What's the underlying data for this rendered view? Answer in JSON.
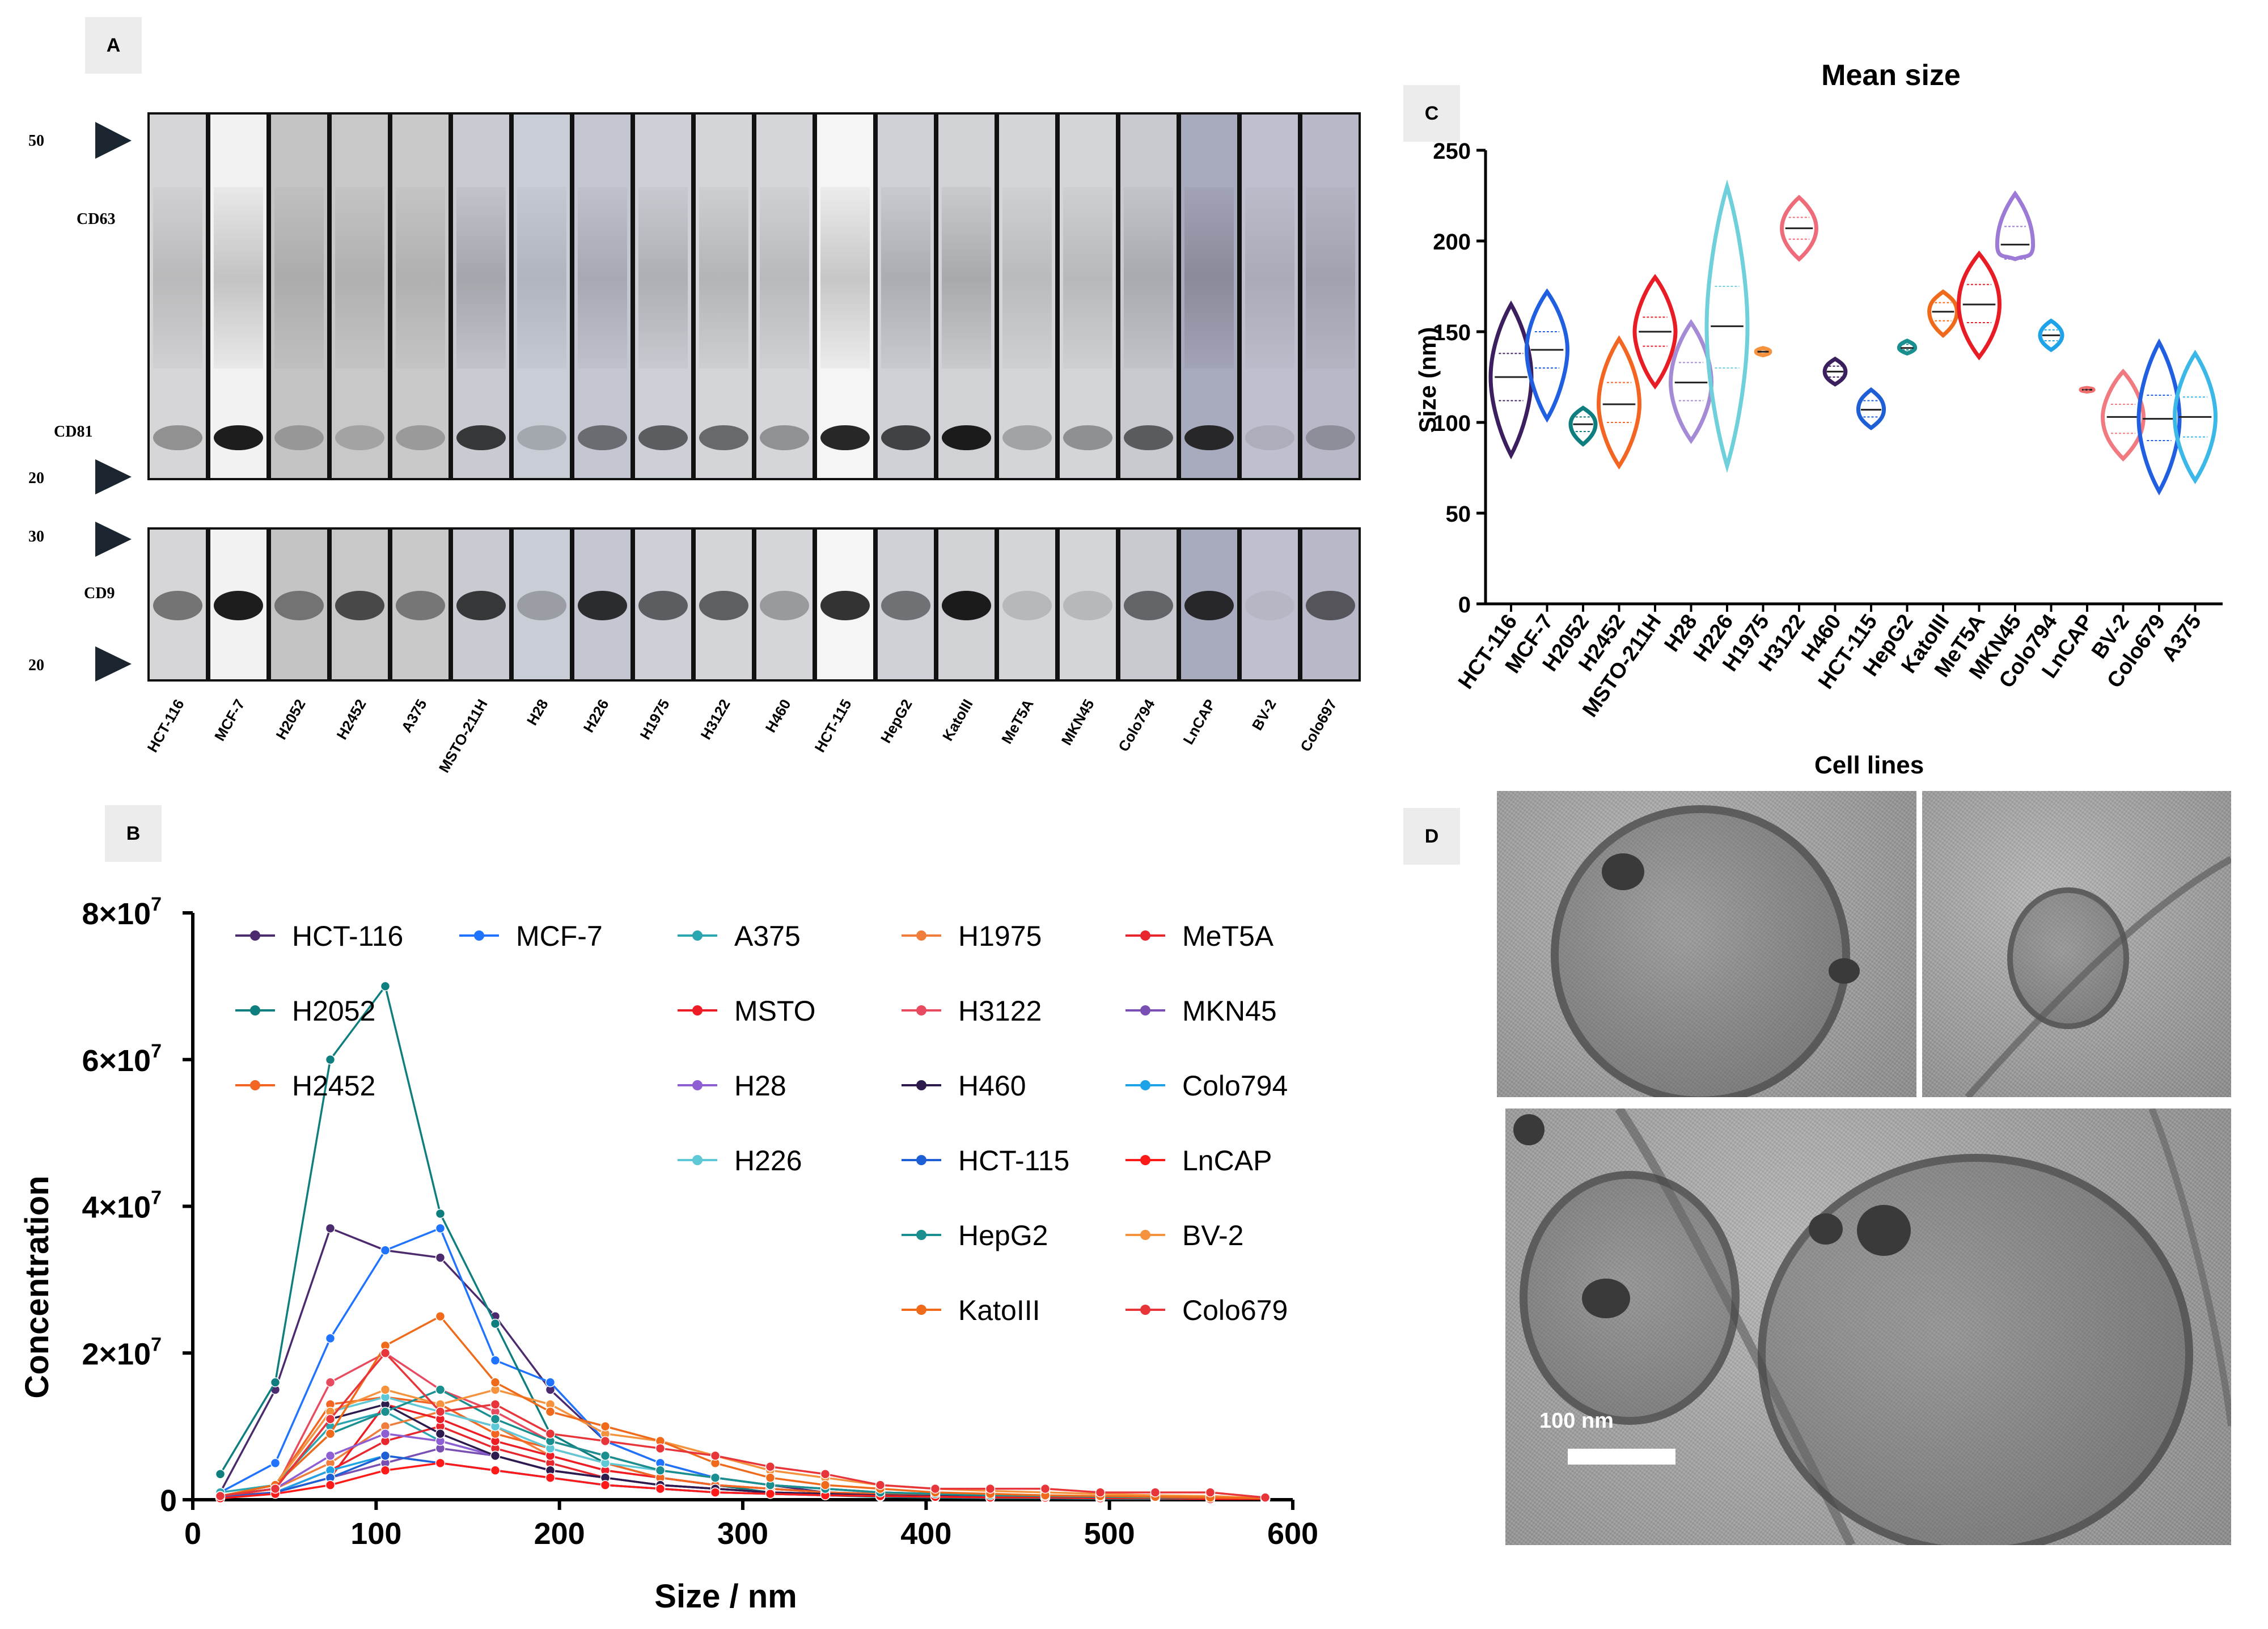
{
  "panels": {
    "a": "A",
    "b": "B",
    "c": "C",
    "d": "D"
  },
  "blot": {
    "markers": {
      "m50": "50",
      "m20_top": "20",
      "m30": "30",
      "m20_bottom": "20"
    },
    "proteins": {
      "cd63": "CD63",
      "cd81": "CD81",
      "cd9": "CD9"
    },
    "lanes": [
      "HCT-116",
      "MCF-7",
      "H2052",
      "H2452",
      "A375",
      "MSTO-211H",
      "H28",
      "H226",
      "H1975",
      "H3122",
      "H460",
      "HCT-115",
      "HepG2",
      "KatoIII",
      "MeT5A",
      "MKN45",
      "Colo794",
      "LnCAP",
      "BV-2",
      "Colo697"
    ]
  },
  "chart_data": [
    {
      "id": "B",
      "type": "line",
      "xlabel": "Size / nm",
      "ylabel": "Concentration",
      "xlim": [
        0,
        600
      ],
      "ylim": [
        0,
        80000000
      ],
      "x_ticks": [
        "0",
        "100",
        "200",
        "300",
        "400",
        "500",
        "600"
      ],
      "y_ticks": [
        {
          "base": "0",
          "exp": ""
        },
        {
          "base": "2×10",
          "exp": "7"
        },
        {
          "base": "4×10",
          "exp": "7"
        },
        {
          "base": "6×10",
          "exp": "7"
        },
        {
          "base": "8×10",
          "exp": "7"
        }
      ],
      "x": [
        15,
        45,
        75,
        105,
        135,
        165,
        195,
        225,
        255,
        285,
        315,
        345,
        375,
        405,
        435,
        465,
        495,
        525,
        555,
        585
      ],
      "series": [
        {
          "name": "HCT-116",
          "color": "#4b2a6e",
          "values": [
            1.0,
            15.0,
            37.0,
            34.0,
            33.0,
            25.0,
            15.0,
            8.0,
            5.0,
            3.0,
            2.0,
            1.0,
            0.6,
            0.4,
            0.3,
            0.3,
            0.2,
            0.2,
            0.2,
            0.1
          ]
        },
        {
          "name": "MCF-7",
          "color": "#1f73ff",
          "values": [
            1.0,
            5.0,
            22.0,
            34.0,
            37.0,
            19.0,
            16.0,
            8.0,
            5.0,
            3.0,
            2.0,
            1.5,
            1.0,
            0.8,
            0.6,
            0.5,
            0.4,
            0.3,
            0.3,
            0.2
          ]
        },
        {
          "name": "A375",
          "color": "#2aa6b0",
          "values": [
            1.0,
            2.0,
            10.0,
            12.0,
            8.0,
            6.0,
            4.0,
            3.0,
            2.0,
            1.5,
            1.0,
            0.8,
            0.6,
            0.5,
            0.4,
            0.3,
            0.3,
            0.2,
            0.2,
            0.1
          ]
        },
        {
          "name": "H1975",
          "color": "#f07d3b",
          "values": [
            0.5,
            1.5,
            5.0,
            10.0,
            12.0,
            10.0,
            6.0,
            4.0,
            3.0,
            2.0,
            1.5,
            1.0,
            0.8,
            0.6,
            0.5,
            0.4,
            0.3,
            0.3,
            0.2,
            0.1
          ]
        },
        {
          "name": "MeT5A",
          "color": "#e8262d",
          "values": [
            0.5,
            1.0,
            4.0,
            8.0,
            10.0,
            7.0,
            5.0,
            3.0,
            2.0,
            1.5,
            1.0,
            0.8,
            0.6,
            0.5,
            0.4,
            0.3,
            0.3,
            0.2,
            0.2,
            0.1
          ]
        },
        {
          "name": "H2052",
          "color": "#0e7e7e",
          "values": [
            3.5,
            16.0,
            60.0,
            70.0,
            39.0,
            24.0,
            9.0,
            5.0,
            3.0,
            2.0,
            1.0,
            0.6,
            0.4,
            0.3,
            0.2,
            0.2,
            0.1,
            0.1,
            0.1,
            0.1
          ]
        },
        {
          "name": "MSTO",
          "color": "#ee1c25",
          "values": [
            0.3,
            1.0,
            3.0,
            13.0,
            11.0,
            8.0,
            6.0,
            4.0,
            3.0,
            2.0,
            1.5,
            1.0,
            0.8,
            0.6,
            0.5,
            0.4,
            0.3,
            0.3,
            0.2,
            0.1
          ]
        },
        {
          "name": "H3122",
          "color": "#e84a5f",
          "values": [
            0.5,
            1.5,
            16.0,
            20.0,
            15.0,
            12.0,
            8.0,
            6.0,
            4.0,
            3.0,
            2.0,
            1.5,
            1.0,
            0.8,
            0.6,
            0.5,
            0.4,
            0.3,
            0.3,
            0.2
          ]
        },
        {
          "name": "MKN45",
          "color": "#7a4fb3",
          "values": [
            0.3,
            1.0,
            3.0,
            5.0,
            7.0,
            6.0,
            4.0,
            3.0,
            2.0,
            1.5,
            1.0,
            0.8,
            0.6,
            0.5,
            0.4,
            0.3,
            0.3,
            0.2,
            0.2,
            0.1
          ]
        },
        {
          "name": "H2452",
          "color": "#f26522",
          "values": [
            0.5,
            2.0,
            13.0,
            14.0,
            13.0,
            9.0,
            7.0,
            5.0,
            3.0,
            2.0,
            1.5,
            1.0,
            0.8,
            0.6,
            0.5,
            0.4,
            0.3,
            0.3,
            0.2,
            0.1
          ]
        },
        {
          "name": "H28",
          "color": "#8d5fd3",
          "values": [
            0.5,
            1.5,
            6.0,
            9.0,
            8.0,
            6.0,
            4.0,
            3.0,
            2.0,
            1.5,
            1.0,
            0.8,
            0.6,
            0.5,
            0.4,
            0.3,
            0.3,
            0.2,
            0.2,
            0.1
          ]
        },
        {
          "name": "H460",
          "color": "#2d1b4e",
          "values": [
            0.5,
            1.5,
            11.0,
            13.0,
            9.0,
            6.0,
            4.0,
            3.0,
            2.0,
            1.5,
            1.0,
            0.8,
            0.6,
            0.5,
            0.4,
            0.3,
            0.3,
            0.2,
            0.2,
            0.1
          ]
        },
        {
          "name": "Colo794",
          "color": "#1fa3e8",
          "values": [
            0.3,
            1.0,
            4.0,
            6.0,
            5.0,
            4.0,
            3.0,
            2.0,
            1.5,
            1.0,
            0.8,
            0.6,
            0.5,
            0.4,
            0.3,
            0.3,
            0.2,
            0.2,
            0.1,
            0.1
          ]
        },
        {
          "name": "H226",
          "color": "#5fc8d6",
          "values": [
            0.5,
            2.0,
            12.0,
            14.0,
            12.0,
            10.0,
            7.0,
            5.0,
            4.0,
            3.0,
            2.0,
            1.5,
            1.0,
            0.8,
            0.6,
            0.5,
            0.4,
            0.3,
            0.3,
            0.2
          ]
        },
        {
          "name": "HCT-115",
          "color": "#1e5fd6",
          "values": [
            0.3,
            1.0,
            3.0,
            6.0,
            5.0,
            4.0,
            3.0,
            2.0,
            1.5,
            1.0,
            0.8,
            0.6,
            0.5,
            0.4,
            0.3,
            0.3,
            0.2,
            0.2,
            0.1,
            0.1
          ]
        },
        {
          "name": "LnCAP",
          "color": "#ff1a1a",
          "values": [
            0.2,
            0.8,
            2.0,
            4.0,
            5.0,
            4.0,
            3.0,
            2.0,
            1.5,
            1.0,
            0.8,
            0.6,
            0.5,
            0.4,
            0.3,
            0.3,
            0.2,
            0.2,
            0.1,
            0.1
          ]
        },
        {
          "name": "HepG2",
          "color": "#1a8f8f",
          "values": [
            0.5,
            2.0,
            9.0,
            12.0,
            15.0,
            11.0,
            8.0,
            6.0,
            4.0,
            3.0,
            2.0,
            1.5,
            1.0,
            0.8,
            0.6,
            0.5,
            0.4,
            0.3,
            0.3,
            0.2
          ]
        },
        {
          "name": "BV-2",
          "color": "#f5923e",
          "values": [
            0.5,
            2.0,
            12.0,
            15.0,
            13.0,
            15.0,
            13.0,
            9.0,
            8.0,
            6.0,
            4.0,
            3.0,
            2.0,
            1.5,
            1.2,
            1.0,
            0.8,
            0.6,
            0.5,
            0.2
          ]
        },
        {
          "name": "KatoIII",
          "color": "#ef6a1a",
          "values": [
            0.5,
            2.0,
            9.0,
            21.0,
            25.0,
            16.0,
            12.0,
            10.0,
            8.0,
            5.0,
            3.0,
            2.0,
            1.5,
            1.0,
            0.8,
            0.6,
            0.5,
            0.4,
            0.3,
            0.2
          ]
        },
        {
          "name": "Colo679",
          "color": "#e8353a",
          "values": [
            0.5,
            1.5,
            11.0,
            20.0,
            12.0,
            13.0,
            9.0,
            8.0,
            7.0,
            6.0,
            4.5,
            3.5,
            2.0,
            1.5,
            1.5,
            1.5,
            1.0,
            1.0,
            1.0,
            0.3
          ]
        }
      ],
      "value_scale": "values ×10^6"
    },
    {
      "id": "C",
      "type": "violin",
      "title": "Mean size",
      "ylabel": "Size (nm)",
      "ylim": [
        0,
        250
      ],
      "y_ticks": [
        "0",
        "50",
        "100",
        "150",
        "200",
        "250"
      ],
      "categories": [
        "HCT-116",
        "MCF-7",
        "H2052",
        "H2452",
        "MSTO-211H",
        "H28",
        "H226",
        "H1975",
        "H3122",
        "H460",
        "HCT-115",
        "HepG2",
        "KatoIII",
        "MeT5A",
        "MKN45",
        "Colo794",
        "LnCAP",
        "BV-2",
        "Colo679",
        "A375"
      ],
      "violins": [
        {
          "name": "HCT-116",
          "color": "#3b1f5e",
          "min": 82,
          "max": 165,
          "median": 125,
          "q1": 112,
          "q3": 138
        },
        {
          "name": "MCF-7",
          "color": "#1f5fe0",
          "min": 102,
          "max": 172,
          "median": 140,
          "q1": 130,
          "q3": 150
        },
        {
          "name": "H2052",
          "color": "#0e7e7e",
          "min": 88,
          "max": 108,
          "median": 99,
          "q1": 95,
          "q3": 103
        },
        {
          "name": "H2452",
          "color": "#f26522",
          "min": 76,
          "max": 146,
          "median": 110,
          "q1": 100,
          "q3": 122
        },
        {
          "name": "MSTO-211H",
          "color": "#e81c25",
          "min": 120,
          "max": 180,
          "median": 150,
          "q1": 142,
          "q3": 158
        },
        {
          "name": "H28",
          "color": "#a58bd6",
          "min": 90,
          "max": 155,
          "median": 122,
          "q1": 112,
          "q3": 133
        },
        {
          "name": "H226",
          "color": "#6fd0dc",
          "min": 76,
          "max": 230,
          "median": 153,
          "q1": 130,
          "q3": 175
        },
        {
          "name": "H1975",
          "color": "#f5923e",
          "min": 137,
          "max": 141,
          "median": 139,
          "q1": 138,
          "q3": 140
        },
        {
          "name": "H3122",
          "color": "#ee6b7a",
          "min": 190,
          "max": 224,
          "median": 207,
          "q1": 201,
          "q3": 213
        },
        {
          "name": "H460",
          "color": "#3b1f5e",
          "min": 121,
          "max": 135,
          "median": 128,
          "q1": 125,
          "q3": 131
        },
        {
          "name": "HCT-115",
          "color": "#1e5fd6",
          "min": 97,
          "max": 118,
          "median": 107,
          "q1": 103,
          "q3": 112
        },
        {
          "name": "HepG2",
          "color": "#1a8f8f",
          "min": 138,
          "max": 145,
          "median": 141,
          "q1": 140,
          "q3": 143
        },
        {
          "name": "KatoIII",
          "color": "#ef6a1a",
          "min": 148,
          "max": 172,
          "median": 161,
          "q1": 156,
          "q3": 166
        },
        {
          "name": "MeT5A",
          "color": "#e81c25",
          "min": 136,
          "max": 193,
          "median": 165,
          "q1": 155,
          "q3": 176
        },
        {
          "name": "MKN45",
          "color": "#9c7ad6",
          "min": 190,
          "max": 226,
          "median": 198,
          "q1": 190,
          "q3": 208
        },
        {
          "name": "Colo794",
          "color": "#1fa3e8",
          "min": 140,
          "max": 156,
          "median": 148,
          "q1": 145,
          "q3": 151
        },
        {
          "name": "LnCAP",
          "color": "#f07070",
          "min": 117,
          "max": 119,
          "median": 118,
          "q1": 117.5,
          "q3": 118.5
        },
        {
          "name": "BV-2",
          "color": "#f07a80",
          "min": 80,
          "max": 128,
          "median": 103,
          "q1": 94,
          "q3": 110
        },
        {
          "name": "Colo679",
          "color": "#1f5fe0",
          "min": 62,
          "max": 144,
          "median": 102,
          "q1": 90,
          "q3": 115
        },
        {
          "name": "A375",
          "color": "#3cb8e8",
          "min": 68,
          "max": 138,
          "median": 103,
          "q1": 92,
          "q3": 114
        }
      ]
    }
  ],
  "panel_d": {
    "title": "Cell lines",
    "scale_bar": "100 nm"
  }
}
